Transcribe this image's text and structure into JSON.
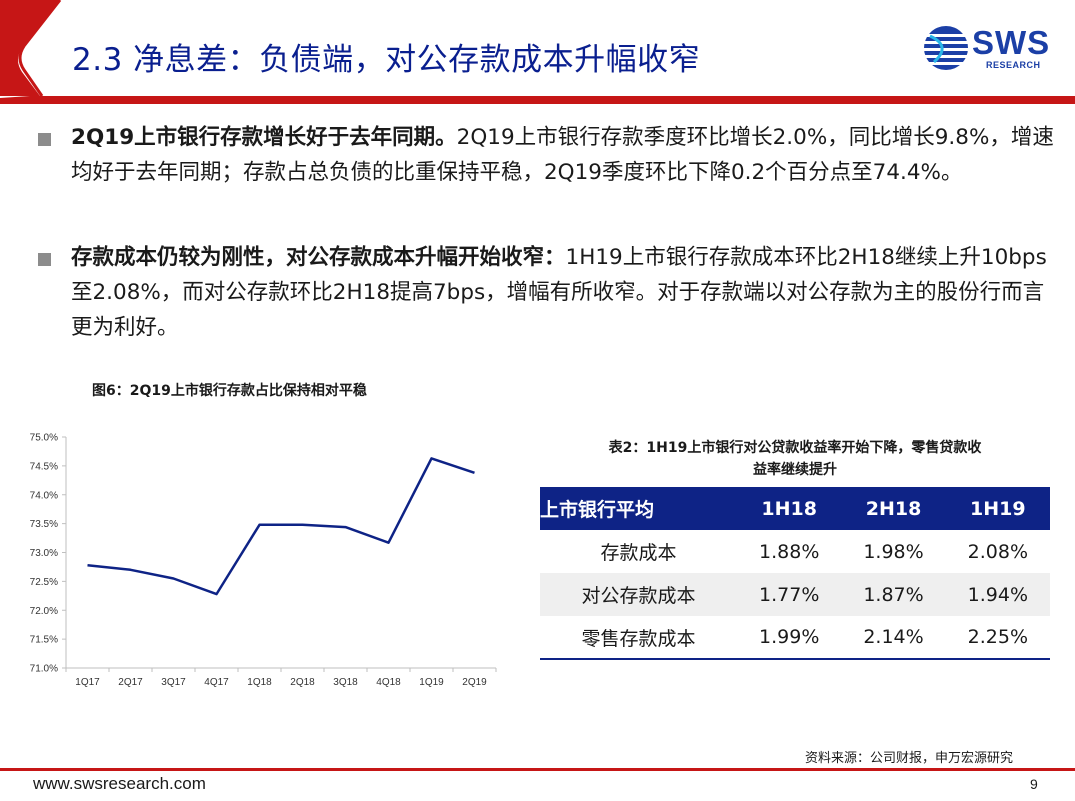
{
  "header": {
    "title": "2.3 净息差：负债端，对公存款成本升幅收窄",
    "brand_color": "#c61616",
    "title_color": "#0a1f8f"
  },
  "logo": {
    "text": "SWS",
    "sub": "RESEARCH"
  },
  "bullets": [
    {
      "bold": "2Q19上市银行存款增长好于去年同期。",
      "text": "2Q19上市银行存款季度环比增长2.0%，同比增长9.8%，增速均好于去年同期；存款占总负债的比重保持平稳，2Q19季度环比下降0.2个百分点至74.4%。"
    },
    {
      "bold": "存款成本仍较为刚性，对公存款成本升幅开始收窄：",
      "text": "1H19上市银行存款成本环比2H18继续上升10bps至2.08%，而对公存款环比2H18提高7bps，增幅有所收窄。对于存款端以对公存款为主的股份行而言更为利好。"
    }
  ],
  "figure": {
    "caption": "图6：2Q19上市银行存款占比保持相对平稳"
  },
  "chart_data": {
    "type": "line",
    "categories": [
      "1Q17",
      "2Q17",
      "3Q17",
      "4Q17",
      "1Q18",
      "2Q18",
      "3Q18",
      "4Q18",
      "1Q19",
      "2Q19"
    ],
    "series": [
      {
        "values": [
          72.78,
          72.7,
          72.55,
          72.28,
          73.48,
          73.48,
          73.44,
          73.17,
          74.63,
          74.38
        ],
        "color": "#0e2386"
      }
    ],
    "ylim": [
      71.0,
      75.0
    ],
    "yticks": [
      "71.0%",
      "71.5%",
      "72.0%",
      "72.5%",
      "73.0%",
      "73.5%",
      "74.0%",
      "74.5%",
      "75.0%"
    ],
    "grid": false,
    "title": "",
    "xlabel": "",
    "ylabel": ""
  },
  "table": {
    "caption_line1": "表2：1H19上市银行对公贷款收益率开始下降，零售贷款收",
    "caption_line2": "益率继续提升",
    "headers": [
      "上市银行平均",
      "1H18",
      "2H18",
      "1H19"
    ],
    "rows": [
      [
        "存款成本",
        "1.88%",
        "1.98%",
        "2.08%"
      ],
      [
        "对公存款成本",
        "1.77%",
        "1.87%",
        "1.94%"
      ],
      [
        "零售存款成本",
        "1.99%",
        "2.14%",
        "2.25%"
      ]
    ],
    "header_color": "#0e2386"
  },
  "source": "资料来源：公司财报，申万宏源研究",
  "footer": {
    "url": "www.swsresearch.com",
    "page": "9"
  }
}
